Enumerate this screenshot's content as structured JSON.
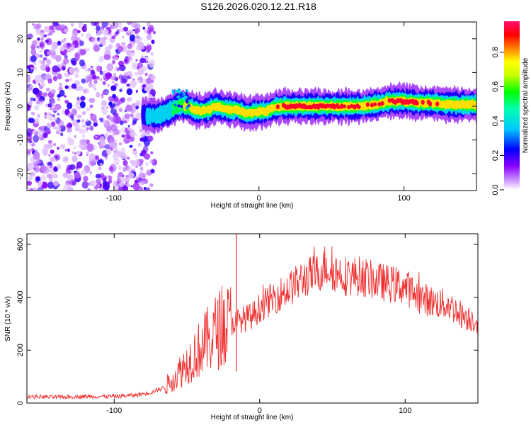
{
  "title": "S126.2026.020.12.21.R18",
  "chart_data": [
    {
      "type": "heatmap",
      "name": "spectrogram",
      "xlabel": "Height of straight line (km)",
      "ylabel": "Frequency (Hz)",
      "xlim": [
        -160,
        150
      ],
      "ylim": [
        -25,
        25
      ],
      "xticks": [
        -100,
        0,
        100
      ],
      "yticks": [
        -20,
        -10,
        0,
        10,
        20
      ],
      "colorbar": {
        "label": "Normalized spectral amplitude",
        "range": [
          0.0,
          0.98
        ],
        "ticks": [
          "0.0",
          "0.2",
          "0.4",
          "0.6",
          "0.8"
        ],
        "colors": [
          "#ffffff",
          "#8b00ff",
          "#0000ff",
          "#00ffff",
          "#00ff00",
          "#ffff00",
          "#ff8000",
          "#ff0000",
          "#ff00a0"
        ]
      },
      "noise_region": {
        "x_from": -160,
        "x_to": -80,
        "freq_from": -25,
        "freq_to": 25,
        "level": 0.1
      },
      "ridge": {
        "x": [
          -80,
          -70,
          -60,
          -55,
          -50,
          -45,
          -40,
          -35,
          -30,
          -25,
          -20,
          -15,
          -10,
          -5,
          0,
          5,
          10,
          15,
          20,
          30,
          40,
          50,
          60,
          70,
          80,
          90,
          100,
          110,
          120,
          130,
          140,
          150
        ],
        "freq": [
          -2.5,
          -3,
          -1,
          0.5,
          0,
          -1,
          -1.5,
          -1,
          0,
          -0.5,
          -1,
          -1,
          -2,
          -2,
          -1.5,
          -1.5,
          -0.5,
          0,
          0,
          0,
          0,
          0,
          0,
          0,
          0.5,
          1.5,
          1.5,
          1,
          1,
          0.5,
          0.5,
          0.5
        ],
        "amplitude": [
          0.35,
          0.4,
          0.5,
          0.6,
          0.75,
          0.8,
          0.85,
          0.85,
          0.85,
          0.8,
          0.8,
          0.85,
          0.85,
          0.85,
          0.85,
          0.85,
          0.85,
          0.9,
          0.95,
          0.95,
          0.95,
          0.95,
          0.9,
          0.9,
          0.9,
          0.9,
          0.95,
          0.9,
          0.9,
          0.85,
          0.85,
          0.8
        ]
      }
    },
    {
      "type": "line",
      "name": "snr",
      "xlabel": "Height of straight line (km)",
      "ylabel": "SNR (10 * v/v)",
      "xlim": [
        -160,
        150
      ],
      "ylim": [
        0,
        640
      ],
      "xticks": [
        -100,
        0,
        100
      ],
      "yticks": [
        0,
        200,
        400,
        600
      ],
      "series": [
        {
          "name": "SNR",
          "color": "#f03030",
          "x": [
            -160,
            -140,
            -120,
            -100,
            -85,
            -75,
            -70,
            -65,
            -60,
            -55,
            -50,
            -45,
            -40,
            -35,
            -30,
            -25,
            -20,
            -15,
            -10,
            -5,
            0,
            10,
            20,
            30,
            40,
            45,
            50,
            60,
            70,
            80,
            90,
            100,
            110,
            120,
            130,
            140,
            150
          ],
          "values": [
            25,
            22,
            25,
            25,
            30,
            40,
            50,
            60,
            90,
            120,
            150,
            185,
            210,
            240,
            270,
            290,
            300,
            310,
            320,
            330,
            360,
            400,
            430,
            470,
            490,
            520,
            500,
            480,
            480,
            460,
            450,
            440,
            400,
            380,
            370,
            330,
            310
          ],
          "spikes": [
            {
              "x": -16,
              "value": 640
            }
          ]
        }
      ]
    }
  ]
}
